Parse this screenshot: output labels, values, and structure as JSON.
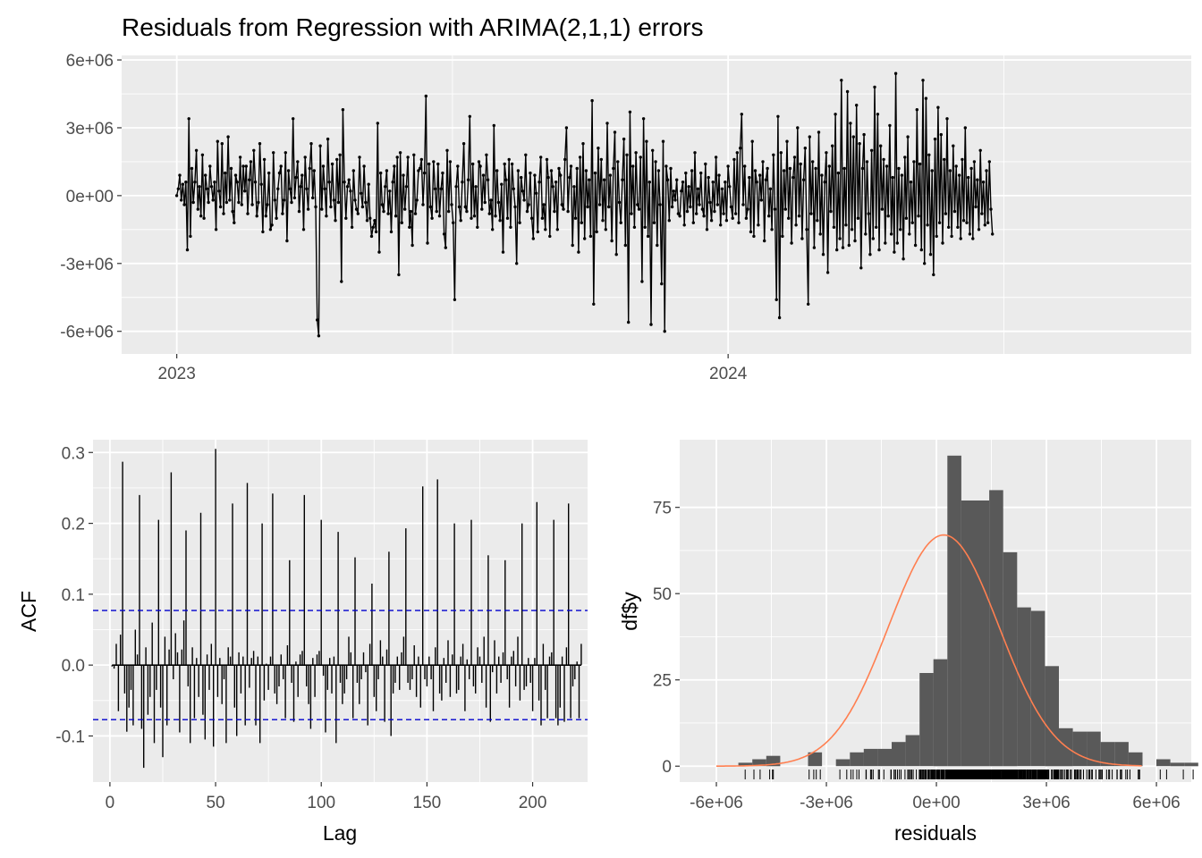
{
  "colors": {
    "panel_bg": "#ebebeb",
    "grid_major": "#ffffff",
    "series": "#000000",
    "ci_line": "#0000cc",
    "histogram_bar": "#595959",
    "density_curve": "#ff7f50",
    "tick_text": "#4d4d4d"
  },
  "chart_data": [
    {
      "type": "line",
      "title": "Residuals from Regression with ARIMA(2,1,1) errors",
      "xlabel": "",
      "ylabel": "",
      "x_ticks": [
        {
          "label": "2023",
          "value": 2023.0
        },
        {
          "label": "2024",
          "value": 2024.0
        }
      ],
      "y_ticks": [
        {
          "label": "6e+06",
          "value": 6000000
        },
        {
          "label": "3e+06",
          "value": 3000000
        },
        {
          "label": "0e+00",
          "value": 0
        },
        {
          "label": "-3e+06",
          "value": -3000000
        },
        {
          "label": "-6e+06",
          "value": -6000000
        }
      ],
      "xlim": [
        2022.9,
        2024.84
      ],
      "ylim": [
        -7000000,
        6200000
      ],
      "marker": "point",
      "approximate_series": true,
      "n_points": 650,
      "series": [
        {
          "x_start": 2023.0,
          "x_step": 0.0027397,
          "values": [
            0,
            300000,
            900000,
            -200000,
            500000,
            -400000,
            600000,
            -2400000,
            3400000,
            -1800000,
            1200000,
            -300000,
            600000,
            2000000,
            -600000,
            400000,
            -900000,
            1800000,
            -1000000,
            900000,
            300000,
            -300000,
            1300000,
            400000,
            -200000,
            600000,
            -1500000,
            2400000,
            200000,
            -500000,
            2300000,
            -800000,
            1000000,
            -300000,
            2600000,
            -200000,
            1200000,
            -700000,
            -1200000,
            900000,
            600000,
            -300000,
            1700000,
            -400000,
            1300000,
            200000,
            1300000,
            -800000,
            700000,
            1500000,
            -400000,
            2000000,
            600000,
            -900000,
            -300000,
            2300000,
            500000,
            -1600000,
            1600000,
            -900000,
            -400000,
            1000000,
            -1500000,
            -1300000,
            1900000,
            -200000,
            -1000000,
            300000,
            1000000,
            1300000,
            -800000,
            -200000,
            1900000,
            -2000000,
            1100000,
            300000,
            -300000,
            3400000,
            -100000,
            800000,
            1500000,
            -700000,
            400000,
            900000,
            -1500000,
            1700000,
            300000,
            -600000,
            1200000,
            2300000,
            -100000,
            1100000,
            -500000,
            -5500000,
            -6200000,
            2200000,
            -600000,
            1300000,
            300000,
            -900000,
            2500000,
            600000,
            -500000,
            1400000,
            -200000,
            -1100000,
            1600000,
            -300000,
            1800000,
            -3800000,
            3800000,
            600000,
            -1000000,
            400000,
            700000,
            200000,
            -1400000,
            1100000,
            -200000,
            -600000,
            -800000,
            1700000,
            100000,
            -500000,
            1300000,
            -300000,
            -1100000,
            500000,
            -1000000,
            -1800000,
            -1400000,
            -1100000,
            -1600000,
            3200000,
            -2500000,
            1000000,
            -400000,
            -700000,
            400000,
            1100000,
            -800000,
            200000,
            -1600000,
            600000,
            1300000,
            -900000,
            1700000,
            -3500000,
            1900000,
            -1200000,
            900000,
            -600000,
            400000,
            1700000,
            -1400000,
            -700000,
            -2200000,
            1800000,
            -800000,
            -200000,
            1100000,
            1200000,
            1600000,
            -400000,
            1000000,
            4400000,
            -2100000,
            1400000,
            -500000,
            -1000000,
            1500000,
            300000,
            -700000,
            1400000,
            -900000,
            300000,
            1000000,
            -1700000,
            -2300000,
            2000000,
            -700000,
            1500000,
            -400000,
            -1200000,
            -4600000,
            400000,
            1300000,
            -500000,
            -1100000,
            600000,
            2300000,
            -500000,
            -700000,
            700000,
            3500000,
            -1000000,
            1400000,
            -900000,
            400000,
            -1400000,
            1500000,
            1300000,
            -600000,
            900000,
            -300000,
            1800000,
            700000,
            -800000,
            -200000,
            -1500000,
            3100000,
            -900000,
            1100000,
            -300000,
            -1100000,
            500000,
            -2500000,
            1400000,
            700000,
            -1000000,
            1600000,
            -1400000,
            1400000,
            300000,
            -500000,
            -3000000,
            1100000,
            -1200000,
            800000,
            200000,
            -200000,
            1800000,
            -700000,
            -400000,
            1000000,
            -1000000,
            -1900000,
            900000,
            100000,
            -1600000,
            600000,
            1700000,
            -1000000,
            -400000,
            -1500000,
            1600000,
            800000,
            -1800000,
            1100000,
            400000,
            -700000,
            600000,
            -1500000,
            1200000,
            900000,
            -400000,
            -600000,
            1600000,
            3000000,
            -700000,
            800000,
            1300000,
            -2200000,
            400000,
            -1000000,
            1200000,
            -2500000,
            1700000,
            -1200000,
            2300000,
            -1900000,
            1100000,
            -500000,
            700000,
            -1800000,
            4200000,
            -4800000,
            1000000,
            -1600000,
            2100000,
            -400000,
            1600000,
            -1100000,
            700000,
            -1500000,
            3200000,
            -500000,
            900000,
            -2000000,
            1200000,
            2800000,
            -2600000,
            1500000,
            -300000,
            -1200000,
            700000,
            2500000,
            -2200000,
            1800000,
            -5600000,
            3700000,
            -800000,
            1300000,
            -1400000,
            1900000,
            -400000,
            -600000,
            1700000,
            -3800000,
            3400000,
            -1400000,
            2400000,
            -1800000,
            600000,
            -5700000,
            2000000,
            -1200000,
            1500000,
            -2200000,
            1100000,
            -400000,
            -3900000,
            2400000,
            -6000000,
            1300000,
            700000,
            -1100000,
            1200000,
            -500000,
            200000,
            -200000,
            700000,
            -800000,
            -900000,
            200000,
            600000,
            -1300000,
            1000000,
            -700000,
            400000,
            -500000,
            1100000,
            -1200000,
            1900000,
            -800000,
            300000,
            -400000,
            1000000,
            -600000,
            -900000,
            1400000,
            -1500000,
            800000,
            -300000,
            -1100000,
            600000,
            -700000,
            1700000,
            -400000,
            900000,
            -1300000,
            300000,
            -800000,
            600000,
            -1100000,
            1300000,
            400000,
            -500000,
            -1000000,
            1600000,
            -800000,
            1900000,
            -1200000,
            2100000,
            3600000,
            -400000,
            1300000,
            -1000000,
            -600000,
            800000,
            -1600000,
            2400000,
            -1800000,
            1100000,
            600000,
            -1300000,
            900000,
            -200000,
            1500000,
            -2000000,
            700000,
            1200000,
            -900000,
            300000,
            -1500000,
            1800000,
            -600000,
            -4600000,
            3500000,
            -5400000,
            1900000,
            -1800000,
            1100000,
            -600000,
            2400000,
            -1000000,
            1200000,
            -2100000,
            800000,
            1700000,
            -1300000,
            3000000,
            -900000,
            1400000,
            -1900000,
            700000,
            2100000,
            -1500000,
            -4800000,
            2600000,
            -800000,
            1500000,
            -2300000,
            1200000,
            -1100000,
            2800000,
            -1700000,
            900000,
            -2600000,
            600000,
            1900000,
            -3400000,
            1300000,
            -700000,
            2200000,
            -1400000,
            3600000,
            -2400000,
            1000000,
            -1900000,
            5100000,
            -2300000,
            1200000,
            -1300000,
            4600000,
            -2200000,
            3200000,
            -1500000,
            2600000,
            -2000000,
            4000000,
            -1000000,
            2300000,
            -3200000,
            1200000,
            2700000,
            -1700000,
            1500000,
            -800000,
            -2600000,
            2000000,
            -1900000,
            4800000,
            -1400000,
            3600000,
            -2400000,
            2200000,
            -600000,
            1600000,
            -2100000,
            1300000,
            -900000,
            3100000,
            -1700000,
            800000,
            -2500000,
            5400000,
            -2100000,
            1200000,
            -1500000,
            900000,
            -2800000,
            1700000,
            -1000000,
            2600000,
            -1700000,
            600000,
            -1200000,
            1500000,
            -2200000,
            3800000,
            -900000,
            1400000,
            -2400000,
            5100000,
            -3000000,
            4300000,
            -1300000,
            1800000,
            -2600000,
            1100000,
            -3500000,
            2500000,
            -1800000,
            3900000,
            -1200000,
            2700000,
            -2100000,
            1600000,
            -800000,
            3400000,
            -1400000,
            1100000,
            -1800000,
            2200000,
            -700000,
            1300000,
            -1400000,
            900000,
            -1900000,
            1600000,
            -1100000,
            3000000,
            -1200000,
            800000,
            -1700000,
            1200000,
            -1900000,
            1500000,
            -500000,
            700000,
            -1500000,
            2000000,
            -800000,
            600000,
            -1300000,
            1100000,
            -1200000,
            1500000,
            -600000,
            -1700000
          ]
        }
      ]
    },
    {
      "type": "bar",
      "subtype": "acf",
      "title": "",
      "xlabel": "Lag",
      "ylabel": "ACF",
      "x_ticks": [
        {
          "label": "0",
          "value": 0
        },
        {
          "label": "50",
          "value": 50
        },
        {
          "label": "100",
          "value": 100
        },
        {
          "label": "150",
          "value": 150
        },
        {
          "label": "200",
          "value": 200
        }
      ],
      "y_ticks": [
        {
          "label": "0.3",
          "value": 0.3
        },
        {
          "label": "0.2",
          "value": 0.2
        },
        {
          "label": "0.1",
          "value": 0.1
        },
        {
          "label": "0.0",
          "value": 0.0
        },
        {
          "label": "-0.1",
          "value": -0.1
        }
      ],
      "xlim": [
        -8,
        226
      ],
      "ylim": [
        -0.165,
        0.318
      ],
      "ci": [
        0.077,
        -0.077
      ],
      "approximate_series": true,
      "lag_start": 1,
      "values": [
        -0.002,
        -0.005,
        0.03,
        -0.065,
        0.043,
        0.287,
        -0.04,
        -0.094,
        -0.06,
        -0.035,
        -0.085,
        0.05,
        0.015,
        0.24,
        -0.09,
        -0.145,
        0.025,
        -0.07,
        -0.045,
        0.06,
        -0.11,
        -0.035,
        0.205,
        -0.06,
        -0.13,
        0.04,
        -0.085,
        0.022,
        0.272,
        -0.02,
        0.045,
        0.018,
        -0.095,
        0.022,
        0.063,
        0.19,
        -0.03,
        -0.11,
        0.025,
        -0.075,
        0.01,
        -0.045,
        0.215,
        -0.07,
        -0.105,
        0.015,
        -0.035,
        0.03,
        -0.115,
        0.305,
        -0.045,
        0.01,
        -0.055,
        -0.02,
        -0.11,
        0.025,
        0.012,
        0.228,
        -0.06,
        -0.1,
        0.018,
        -0.04,
        0.012,
        -0.085,
        0.257,
        -0.032,
        0.01,
        0.02,
        -0.085,
        0.012,
        -0.11,
        0.2,
        -0.05,
        0.002,
        -0.035,
        0.012,
        0.242,
        -0.04,
        -0.055,
        -0.03,
        0.015,
        -0.02,
        -0.075,
        0.028,
        0.148,
        -0.025,
        -0.08,
        0.005,
        -0.045,
        0.015,
        0.02,
        0.24,
        -0.03,
        -0.055,
        -0.09,
        0.01,
        -0.045,
        0.015,
        0.02,
        0.205,
        -0.015,
        -0.095,
        -0.035,
        0.01,
        -0.04,
        0.012,
        -0.11,
        0.188,
        -0.025,
        -0.055,
        -0.04,
        -0.02,
        0.04,
        0.018,
        -0.075,
        0.152,
        -0.025,
        -0.055,
        -0.02,
        0.018,
        -0.01,
        -0.085,
        0.03,
        0.115,
        -0.045,
        -0.065,
        -0.02,
        0.035,
        0.012,
        -0.08,
        0.022,
        0.16,
        -0.1,
        -0.04,
        -0.025,
        0.012,
        -0.035,
        0.018,
        0.04,
        0.193,
        -0.025,
        -0.035,
        -0.02,
        0.028,
        -0.045,
        0.012,
        -0.06,
        0.252,
        -0.02,
        -0.03,
        0.012,
        -0.02,
        -0.065,
        0.025,
        0.262,
        -0.04,
        -0.05,
        0.01,
        -0.025,
        0.035,
        -0.045,
        0.015,
        0.2,
        -0.04,
        -0.035,
        0.012,
        0.03,
        -0.065,
        0.008,
        -0.02,
        0.205,
        -0.03,
        -0.04,
        0.025,
        0.012,
        -0.025,
        0.04,
        -0.06,
        0.155,
        -0.08,
        -0.01,
        0.035,
        -0.04,
        0.012,
        -0.025,
        0.018,
        0.148,
        -0.02,
        -0.06,
        0.012,
        0.02,
        -0.03,
        0.04,
        -0.05,
        0.2,
        -0.035,
        -0.03,
        0.01,
        -0.025,
        -0.065,
        0.01,
        0.23,
        -0.05,
        -0.085,
        0.03,
        -0.035,
        -0.075,
        0.012,
        0.018,
        0.205,
        -0.075,
        -0.085,
        -0.06,
        0.012,
        -0.08,
        0.025,
        0.228,
        -0.075,
        -0.03,
        -0.02,
        0.005,
        -0.075,
        0.03
      ]
    },
    {
      "type": "bar",
      "subtype": "histogram",
      "title": "",
      "xlabel": "residuals",
      "ylabel": "df$y",
      "x_ticks": [
        {
          "label": "-6e+06",
          "value": -6000000
        },
        {
          "label": "-3e+06",
          "value": -3000000
        },
        {
          "label": "0e+00",
          "value": 0
        },
        {
          "label": "3e+06",
          "value": 3000000
        },
        {
          "label": "6e+06",
          "value": 6000000
        }
      ],
      "y_ticks": [
        {
          "label": "75",
          "value": 75
        },
        {
          "label": "50",
          "value": 50
        },
        {
          "label": "25",
          "value": 25
        },
        {
          "label": "0",
          "value": 0
        }
      ],
      "xlim": [
        -7000000,
        6950000
      ],
      "ylim": [
        -4.6,
        94.6
      ],
      "bin_width": 380000,
      "bin_start": -5400000,
      "counts": [
        1,
        2,
        3,
        0,
        0,
        4,
        0,
        2,
        4,
        5,
        5,
        7,
        9,
        27,
        31,
        90,
        77,
        77,
        80,
        62,
        46,
        45,
        29,
        11,
        10,
        10,
        7,
        7,
        4,
        0,
        2,
        1,
        1
      ],
      "density_curve": {
        "mean": 200000,
        "sd": 1500000,
        "peak_count": 67
      },
      "rug_note": "rug marks below histogram"
    }
  ]
}
